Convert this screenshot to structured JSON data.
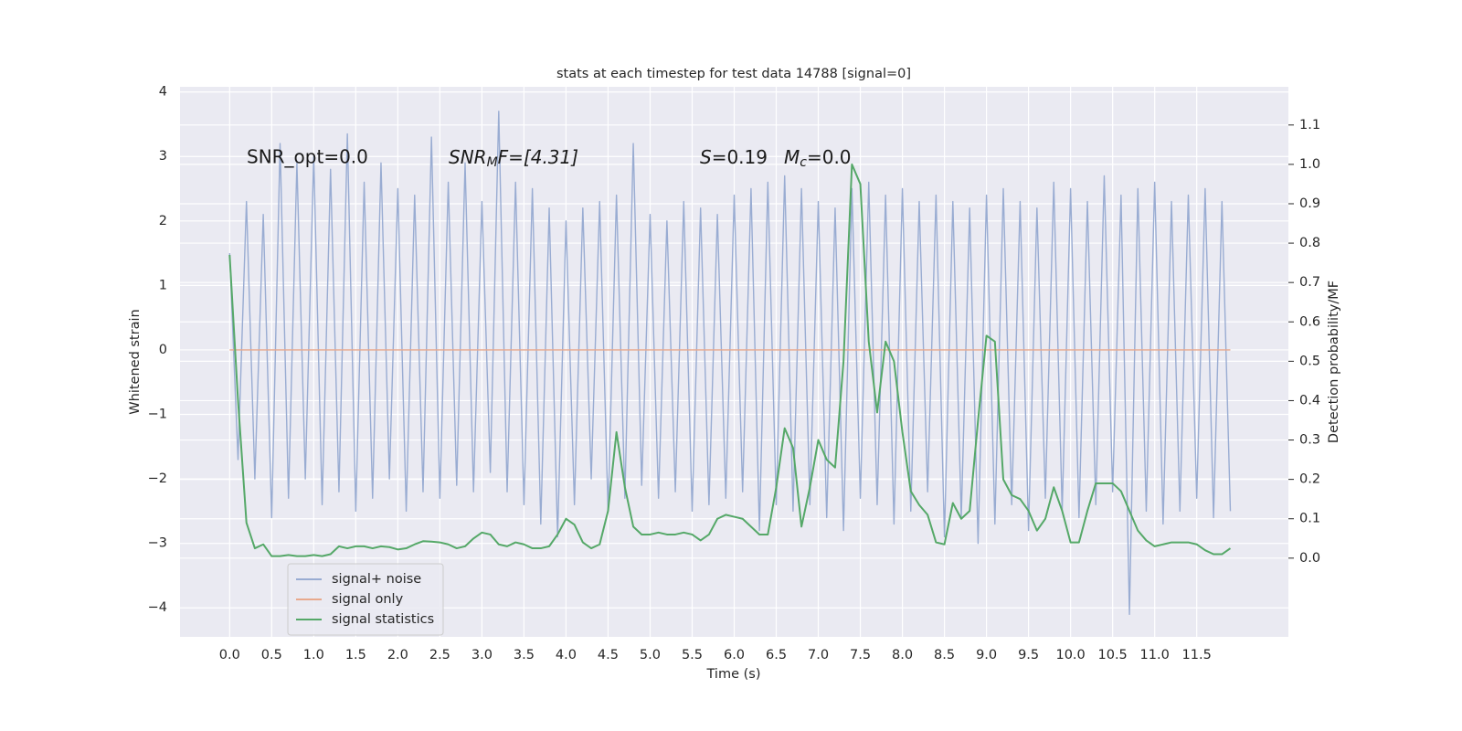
{
  "chart_data": {
    "type": "line",
    "title": "stats at each timestep for test data 14788 [signal=0]",
    "xlabel": "Time (s)",
    "ylabel": "Whitened strain",
    "y2label": "Detection probability/MF",
    "annotations": [
      {
        "text": "SNR_opt=0.0"
      },
      {
        "main": "SNR",
        "sub": "M",
        "rest": "F=[4.31]"
      },
      {
        "main": "S",
        "rest": "=0.19"
      },
      {
        "main": "M",
        "sub": "c",
        "rest": "=0.0"
      }
    ],
    "grid": true,
    "legend": "lower left",
    "xlim": [
      -0.59,
      12.59
    ],
    "ylim": [
      -4.45,
      4.08
    ],
    "y2lim": [
      -0.2,
      1.197
    ],
    "xticks": [
      {
        "value": 0,
        "label": "0.0"
      },
      0.5,
      {
        "value": 1,
        "label": "1.0"
      },
      1.5,
      {
        "value": 2,
        "label": "2.0"
      },
      2.5,
      {
        "value": 3,
        "label": "3.0"
      },
      3.5,
      {
        "value": 4,
        "label": "4.0"
      },
      4.5,
      {
        "value": 5,
        "label": "5.0"
      },
      5.5,
      {
        "value": 6,
        "label": "6.0"
      },
      6.5,
      {
        "value": 7,
        "label": "7.0"
      },
      7.5,
      {
        "value": 8,
        "label": "8.0"
      },
      8.5,
      {
        "value": 9,
        "label": "9.0"
      },
      9.5,
      {
        "value": 10,
        "label": "10.0"
      },
      10.5,
      {
        "value": 11,
        "label": "11.0"
      },
      11.5
    ],
    "yticks": [
      {
        "value": -4,
        "label": "−4"
      },
      {
        "value": -3,
        "label": "−3"
      },
      {
        "value": -2,
        "label": "−2"
      },
      {
        "value": -1,
        "label": "−1"
      },
      0,
      1,
      2,
      3,
      4
    ],
    "y2ticks": [
      {
        "value": 0,
        "label": "0.0"
      },
      0.1,
      0.2,
      0.3,
      0.4,
      0.5,
      0.6,
      0.7,
      0.8,
      0.9,
      {
        "value": 1,
        "label": "1.0"
      },
      1.1
    ],
    "x": [
      0.0,
      0.1,
      0.2,
      0.3,
      0.4,
      0.5,
      0.6,
      0.7,
      0.8,
      0.9,
      1.0,
      1.1,
      1.2,
      1.3,
      1.4,
      1.5,
      1.6,
      1.7,
      1.8,
      1.9,
      2.0,
      2.1,
      2.2,
      2.3,
      2.4,
      2.5,
      2.6,
      2.7,
      2.8,
      2.9,
      3.0,
      3.1,
      3.2,
      3.3,
      3.4,
      3.5,
      3.6,
      3.7,
      3.8,
      3.9,
      4.0,
      4.1,
      4.2,
      4.3,
      4.4,
      4.5,
      4.6,
      4.7,
      4.8,
      4.9,
      5.0,
      5.1,
      5.2,
      5.3,
      5.4,
      5.5,
      5.6,
      5.7,
      5.8,
      5.9,
      6.0,
      6.1,
      6.2,
      6.3,
      6.4,
      6.5,
      6.6,
      6.7,
      6.8,
      6.9,
      7.0,
      7.1,
      7.2,
      7.3,
      7.4,
      7.5,
      7.6,
      7.7,
      7.8,
      7.9,
      8.0,
      8.1,
      8.2,
      8.3,
      8.4,
      8.5,
      8.6,
      8.7,
      8.8,
      8.9,
      9.0,
      9.1,
      9.2,
      9.3,
      9.4,
      9.5,
      9.6,
      9.7,
      9.8,
      9.9,
      10.0,
      10.1,
      10.2,
      10.3,
      10.4,
      10.5,
      10.6,
      10.7,
      10.8,
      10.9,
      11.0,
      11.1,
      11.2,
      11.3,
      11.4,
      11.5,
      11.6,
      11.7,
      11.8,
      11.9
    ],
    "series": [
      {
        "name": "signal+ noise",
        "color": "#99acd2",
        "values": [
          1.5,
          -1.7,
          2.3,
          -2.0,
          2.1,
          -2.6,
          3.2,
          -2.3,
          2.9,
          -2.0,
          3.0,
          -2.4,
          2.8,
          -2.2,
          3.35,
          -2.5,
          2.6,
          -2.3,
          2.9,
          -2.0,
          2.5,
          -2.5,
          2.4,
          -2.2,
          3.3,
          -2.3,
          2.6,
          -2.1,
          2.9,
          -2.2,
          2.3,
          -1.9,
          3.7,
          -2.2,
          2.6,
          -2.4,
          2.5,
          -2.7,
          2.2,
          -2.9,
          2.0,
          -2.4,
          2.2,
          -2.0,
          2.3,
          -2.5,
          2.4,
          -2.3,
          3.2,
          -2.1,
          2.1,
          -2.3,
          2.0,
          -2.2,
          2.3,
          -2.5,
          2.2,
          -2.4,
          2.1,
          -2.3,
          2.4,
          -2.2,
          2.5,
          -2.8,
          2.6,
          -2.4,
          2.7,
          -2.5,
          2.5,
          -2.4,
          2.3,
          -2.6,
          2.2,
          -2.8,
          2.5,
          -2.3,
          2.6,
          -2.4,
          2.4,
          -2.7,
          2.5,
          -2.5,
          2.3,
          -2.2,
          2.4,
          -2.9,
          2.3,
          -2.6,
          2.2,
          -3.0,
          2.4,
          -2.7,
          2.5,
          -2.4,
          2.3,
          -2.8,
          2.2,
          -2.3,
          2.6,
          -2.5,
          2.5,
          -2.6,
          2.3,
          -2.4,
          2.7,
          -2.2,
          2.4,
          -4.1,
          2.5,
          -2.5,
          2.6,
          -2.7,
          2.3,
          -2.5,
          2.4,
          -2.3,
          2.5,
          -2.6,
          2.3,
          -2.5
        ]
      },
      {
        "name": "signal only",
        "color": "#e8a98d",
        "values": [
          0,
          0,
          0,
          0,
          0,
          0,
          0,
          0,
          0,
          0,
          0,
          0,
          0,
          0,
          0,
          0,
          0,
          0,
          0,
          0,
          0,
          0,
          0,
          0,
          0,
          0,
          0,
          0,
          0,
          0,
          0,
          0,
          0,
          0,
          0,
          0,
          0,
          0,
          0,
          0,
          0,
          0,
          0,
          0,
          0,
          0,
          0,
          0,
          0,
          0,
          0,
          0,
          0,
          0,
          0,
          0,
          0,
          0,
          0,
          0,
          0,
          0,
          0,
          0,
          0,
          0,
          0,
          0,
          0,
          0,
          0,
          0,
          0,
          0,
          0,
          0,
          0,
          0,
          0,
          0,
          0,
          0,
          0,
          0,
          0,
          0,
          0,
          0,
          0,
          0,
          0,
          0,
          0,
          0,
          0,
          0,
          0,
          0,
          0,
          0,
          0,
          0,
          0,
          0,
          0,
          0,
          0,
          0,
          0,
          0,
          0,
          0,
          0,
          0,
          0,
          0,
          0,
          0,
          0,
          0
        ]
      },
      {
        "name": "signal statistics",
        "color": "#55a868",
        "axis": "y2",
        "values": [
          0.77,
          0.4,
          0.09,
          0.025,
          0.035,
          0.005,
          0.005,
          0.008,
          0.005,
          0.005,
          0.008,
          0.005,
          0.01,
          0.03,
          0.025,
          0.03,
          0.03,
          0.025,
          0.03,
          0.028,
          0.022,
          0.025,
          0.035,
          0.043,
          0.042,
          0.04,
          0.035,
          0.025,
          0.03,
          0.05,
          0.065,
          0.06,
          0.035,
          0.03,
          0.04,
          0.035,
          0.025,
          0.025,
          0.03,
          0.06,
          0.1,
          0.085,
          0.04,
          0.025,
          0.035,
          0.12,
          0.32,
          0.18,
          0.08,
          0.06,
          0.06,
          0.065,
          0.06,
          0.06,
          0.065,
          0.06,
          0.045,
          0.06,
          0.1,
          0.11,
          0.105,
          0.1,
          0.08,
          0.06,
          0.06,
          0.18,
          0.33,
          0.28,
          0.08,
          0.18,
          0.3,
          0.25,
          0.23,
          0.5,
          1.0,
          0.95,
          0.55,
          0.37,
          0.55,
          0.5,
          0.32,
          0.17,
          0.135,
          0.11,
          0.04,
          0.035,
          0.14,
          0.1,
          0.12,
          0.35,
          0.565,
          0.55,
          0.2,
          0.16,
          0.15,
          0.12,
          0.07,
          0.1,
          0.18,
          0.12,
          0.04,
          0.04,
          0.12,
          0.19,
          0.19,
          0.19,
          0.17,
          0.12,
          0.07,
          0.045,
          0.03,
          0.035,
          0.04,
          0.04,
          0.04,
          0.035,
          0.02,
          0.01,
          0.01,
          0.025
        ]
      }
    ]
  }
}
